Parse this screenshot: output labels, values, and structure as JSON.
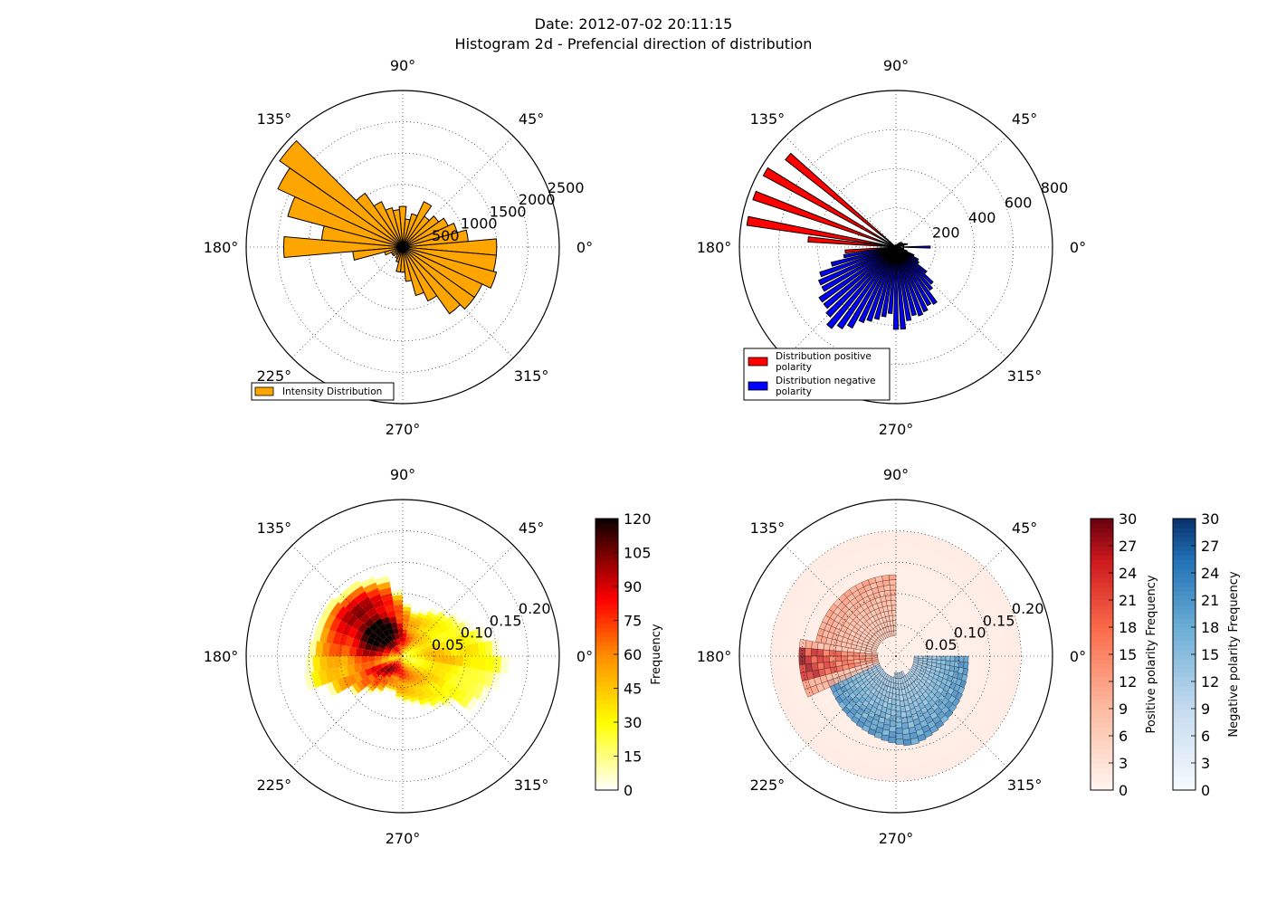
{
  "header": {
    "line1": "Date: 2012-07-02 20:11:15",
    "line2": "Histogram 2d - Prefencial direction of distribution"
  },
  "angle_labels": [
    "0°",
    "45°",
    "90°",
    "135°",
    "180°",
    "225°",
    "270°",
    "315°"
  ],
  "chart_data": [
    {
      "type": "bar",
      "projection": "polar",
      "panel": "top-left",
      "rmax": 2500,
      "rticks": [
        500,
        1000,
        1500,
        2000,
        2500
      ],
      "rtick_labels": [
        "500",
        "1000",
        "1500",
        "2000",
        "2500"
      ],
      "bin_width_deg": 10,
      "grid": true,
      "legend": "lower-left",
      "series": [
        {
          "name": "Intensity Distribution",
          "color": "#ffa500",
          "theta_deg": [
            0,
            10,
            20,
            30,
            40,
            50,
            60,
            70,
            80,
            90,
            100,
            110,
            120,
            130,
            140,
            150,
            160,
            170,
            180,
            190,
            200,
            210,
            220,
            230,
            240,
            250,
            260,
            270,
            280,
            290,
            300,
            310,
            320,
            330,
            340,
            350
          ],
          "values": [
            1500,
            1050,
            900,
            800,
            700,
            600,
            800,
            550,
            450,
            650,
            600,
            650,
            800,
            1050,
            2400,
            2200,
            1900,
            1300,
            1900,
            800,
            300,
            200,
            200,
            150,
            200,
            250,
            400,
            400,
            550,
            800,
            950,
            1300,
            1400,
            1400,
            1550,
            1500
          ]
        }
      ]
    },
    {
      "type": "bar",
      "projection": "polar",
      "panel": "top-right",
      "rmax": 800,
      "rticks": [
        0,
        200,
        400,
        600,
        800
      ],
      "rtick_labels": [
        "0",
        "200",
        "400",
        "600",
        "800"
      ],
      "bin_width_deg": 5,
      "grid": true,
      "legend": "lower-left",
      "series": [
        {
          "name": "Distribution positive polarity",
          "color": "#ff0000",
          "theta_deg": [
            140,
            150,
            160,
            170,
            175,
            185,
            190,
            195
          ],
          "values": [
            720,
            770,
            770,
            770,
            450,
            260,
            60,
            30
          ]
        },
        {
          "name": "Distribution negative polarity",
          "color": "#0000ff",
          "theta_deg": [
            0,
            15,
            20,
            25,
            30,
            35,
            40,
            45,
            50,
            55,
            60,
            65,
            70,
            75,
            80,
            85,
            90,
            95,
            100,
            105,
            110,
            115,
            120,
            125,
            130,
            135,
            140,
            145,
            150,
            155,
            160,
            165,
            170,
            175,
            180,
            185,
            190,
            195,
            200,
            205,
            210,
            215,
            220,
            225,
            230,
            235,
            240,
            245,
            250,
            255,
            260,
            265,
            270,
            275,
            280,
            285,
            290,
            295,
            300,
            305,
            310,
            315,
            320,
            325,
            330,
            335,
            340,
            345,
            350,
            355
          ],
          "values": [
            175,
            60,
            50,
            40,
            30,
            30,
            25,
            20,
            15,
            15,
            15,
            15,
            10,
            10,
            10,
            10,
            10,
            10,
            10,
            10,
            10,
            10,
            10,
            10,
            10,
            10,
            10,
            10,
            10,
            10,
            10,
            10,
            10,
            10,
            10,
            40,
            270,
            340,
            410,
            430,
            430,
            470,
            470,
            490,
            530,
            500,
            470,
            420,
            400,
            380,
            360,
            340,
            420,
            420,
            380,
            360,
            370,
            360,
            340,
            350,
            280,
            260,
            200,
            140,
            130,
            100,
            60,
            40,
            25,
            20
          ]
        }
      ]
    },
    {
      "type": "heatmap",
      "projection": "polar",
      "panel": "bottom-left",
      "rmax": 0.25,
      "rticks": [
        0.05,
        0.1,
        0.15,
        0.2
      ],
      "rtick_labels": [
        "0.05",
        "0.10",
        "0.15",
        "0.20"
      ],
      "theta_bins": 36,
      "colormap": "hot_r",
      "colorbar": {
        "label": "Frequency",
        "range": [
          0,
          120
        ],
        "ticks": [
          "0",
          "15",
          "30",
          "45",
          "60",
          "75",
          "90",
          "105",
          "120"
        ]
      },
      "sector_extents": [
        0.155,
        0.14,
        0.12,
        0.11,
        0.1,
        0.09,
        0.08,
        0.075,
        0.085,
        0.105,
        0.13,
        0.135,
        0.14,
        0.14,
        0.145,
        0.145,
        0.145,
        0.15,
        0.155,
        0.16,
        0.13,
        0.1,
        0.08,
        0.07,
        0.06,
        0.06,
        0.07,
        0.075,
        0.08,
        0.09,
        0.1,
        0.11,
        0.14,
        0.15,
        0.16,
        0.17
      ],
      "sector_intensity": [
        40,
        35,
        30,
        35,
        40,
        45,
        55,
        60,
        70,
        80,
        90,
        100,
        110,
        115,
        110,
        100,
        90,
        80,
        60,
        55,
        70,
        80,
        85,
        80,
        75,
        70,
        65,
        60,
        55,
        50,
        45,
        40,
        35,
        30,
        30,
        40
      ]
    },
    {
      "type": "heatmap",
      "projection": "polar",
      "panel": "bottom-right",
      "rmax": 0.25,
      "rticks": [
        0.05,
        0.1,
        0.15,
        0.2
      ],
      "rtick_labels": [
        "0.05",
        "0.10",
        "0.15",
        "0.20"
      ],
      "layers": [
        {
          "name": "Positive polarity Frequency",
          "colormap": "Reds",
          "range": [
            0,
            30
          ],
          "ticks": [
            "0",
            "3",
            "6",
            "9",
            "12",
            "15",
            "18",
            "21",
            "24",
            "27",
            "30"
          ],
          "hot_theta_deg": [
            180,
            190,
            200
          ],
          "peak": 30
        },
        {
          "name": "Negative polarity Frequency",
          "colormap": "Blues",
          "range": [
            0,
            30
          ],
          "ticks": [
            "0",
            "3",
            "6",
            "9",
            "12",
            "15",
            "18",
            "21",
            "24",
            "27",
            "30"
          ],
          "hot_theta_deg": [
            200,
            360
          ],
          "peak": 24
        }
      ]
    }
  ]
}
